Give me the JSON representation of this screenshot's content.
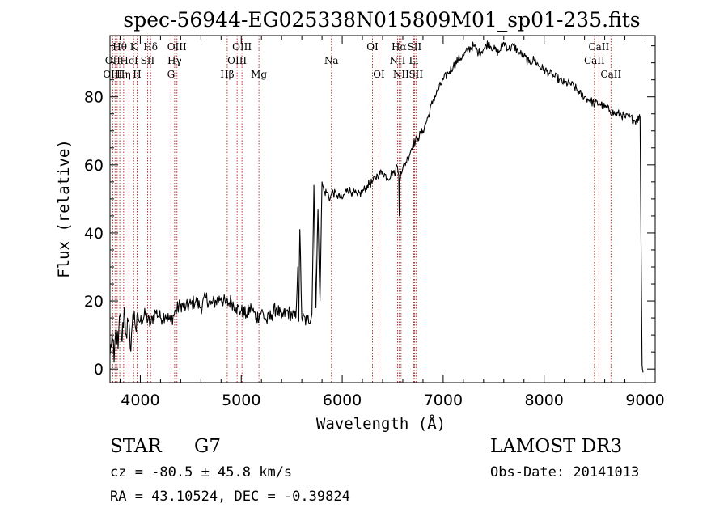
{
  "chart_data": {
    "type": "line",
    "title": "spec-56944-EG025338N015809M01_sp01-235.fits",
    "xlabel": "Wavelength (Å)",
    "ylabel": "Flux (relative)",
    "xlim": [
      3700,
      9100
    ],
    "ylim": [
      -4,
      98
    ],
    "xticks": [
      4000,
      5000,
      6000,
      7000,
      8000,
      9000
    ],
    "yticks": [
      0,
      20,
      40,
      60,
      80
    ],
    "grid": false,
    "line_color": "#000000",
    "marker_color": "#b22222",
    "series": [
      {
        "name": "flux",
        "x": [
          3700,
          3720,
          3740,
          3760,
          3780,
          3800,
          3820,
          3840,
          3860,
          3880,
          3900,
          3920,
          3940,
          3960,
          3980,
          4000,
          4050,
          4100,
          4150,
          4200,
          4250,
          4300,
          4350,
          4400,
          4450,
          4500,
          4550,
          4600,
          4650,
          4700,
          4750,
          4800,
          4850,
          4900,
          4950,
          5000,
          5050,
          5100,
          5150,
          5200,
          5250,
          5300,
          5350,
          5400,
          5450,
          5500,
          5540,
          5560,
          5570,
          5580,
          5600,
          5650,
          5700,
          5720,
          5740,
          5760,
          5780,
          5800,
          5820,
          5850,
          5880,
          5900,
          5950,
          6000,
          6050,
          6100,
          6150,
          6200,
          6250,
          6300,
          6350,
          6400,
          6450,
          6500,
          6520,
          6540,
          6560,
          6565,
          6570,
          6580,
          6600,
          6650,
          6700,
          6750,
          6800,
          6850,
          6900,
          6950,
          7000,
          7050,
          7100,
          7150,
          7200,
          7250,
          7300,
          7350,
          7400,
          7450,
          7500,
          7550,
          7600,
          7650,
          7700,
          7750,
          7800,
          7850,
          7900,
          7950,
          8000,
          8050,
          8100,
          8150,
          8200,
          8250,
          8300,
          8350,
          8400,
          8450,
          8500,
          8550,
          8600,
          8650,
          8700,
          8750,
          8800,
          8850,
          8900,
          8950,
          8970,
          8980
        ],
        "y": [
          4,
          10,
          2,
          12,
          6,
          16,
          8,
          18,
          10,
          14,
          6,
          13,
          17,
          11,
          15,
          14,
          16,
          13,
          17,
          15,
          16,
          14,
          17,
          19,
          18,
          19,
          20,
          18,
          21,
          19,
          20,
          21,
          19,
          20,
          18,
          17,
          16,
          18,
          15,
          17,
          14,
          16,
          18,
          15,
          17,
          16,
          15,
          30,
          14,
          41,
          15,
          14,
          16,
          54,
          18,
          47,
          20,
          55,
          52,
          52,
          50,
          52,
          51,
          50,
          53,
          52,
          51,
          52,
          54,
          55,
          57,
          58,
          56,
          58,
          57,
          60,
          57,
          45,
          56,
          58,
          59,
          62,
          66,
          68,
          70,
          74,
          79,
          82,
          85,
          87,
          89,
          91,
          92,
          94,
          95,
          93,
          94,
          96,
          94,
          93,
          96,
          94,
          95,
          93,
          92,
          90,
          91,
          89,
          88,
          87,
          86,
          85,
          84,
          84,
          83,
          81,
          80,
          79,
          78,
          78,
          77,
          76,
          75,
          75,
          74,
          74,
          73,
          74,
          1,
          -1
        ]
      }
    ],
    "lines_row1": [
      {
        "label": "Hθ",
        "x": 3797
      },
      {
        "label": "K",
        "x": 3934
      },
      {
        "label": "Hδ",
        "x": 4102
      },
      {
        "label": "OIII",
        "x": 4363
      },
      {
        "label": "OIII",
        "x": 5007
      },
      {
        "label": "OI",
        "x": 6300
      },
      {
        "label": "Hα",
        "x": 6563
      },
      {
        "label": "SII",
        "x": 6716
      },
      {
        "label": "CaII",
        "x": 8542
      }
    ],
    "lines_row2": [
      {
        "label": "OII",
        "x": 3727
      },
      {
        "label": "HeI",
        "x": 3889
      },
      {
        "label": "SII",
        "x": 4072
      },
      {
        "label": "Hγ",
        "x": 4340
      },
      {
        "label": "OIII",
        "x": 4959
      },
      {
        "label": "Na",
        "x": 5893
      },
      {
        "label": "NII",
        "x": 6548
      },
      {
        "label": "Li",
        "x": 6708
      },
      {
        "label": "CaII",
        "x": 8498
      }
    ],
    "lines_row3": [
      {
        "label": "OIII",
        "x": 3727
      },
      {
        "label": "Hη",
        "x": 3835
      },
      {
        "label": "H",
        "x": 3968
      },
      {
        "label": "G",
        "x": 4304
      },
      {
        "label": "Hβ",
        "x": 4861
      },
      {
        "label": "Mg",
        "x": 5175
      },
      {
        "label": "OI",
        "x": 6364
      },
      {
        "label": "NII",
        "x": 6583
      },
      {
        "label": "SII",
        "x": 6731
      },
      {
        "label": "CaII",
        "x": 8662
      }
    ],
    "extra_marker_lines": [
      3750,
      3771,
      3889
    ]
  },
  "info": {
    "class_label": "STAR",
    "subclass": "G7",
    "survey": "LAMOST DR3",
    "cz": "cz = -80.5 ± 45.8 km/s",
    "obs_date": "Obs-Date: 20141013",
    "radec": "RA =  43.10524, DEC =  -0.39824"
  }
}
